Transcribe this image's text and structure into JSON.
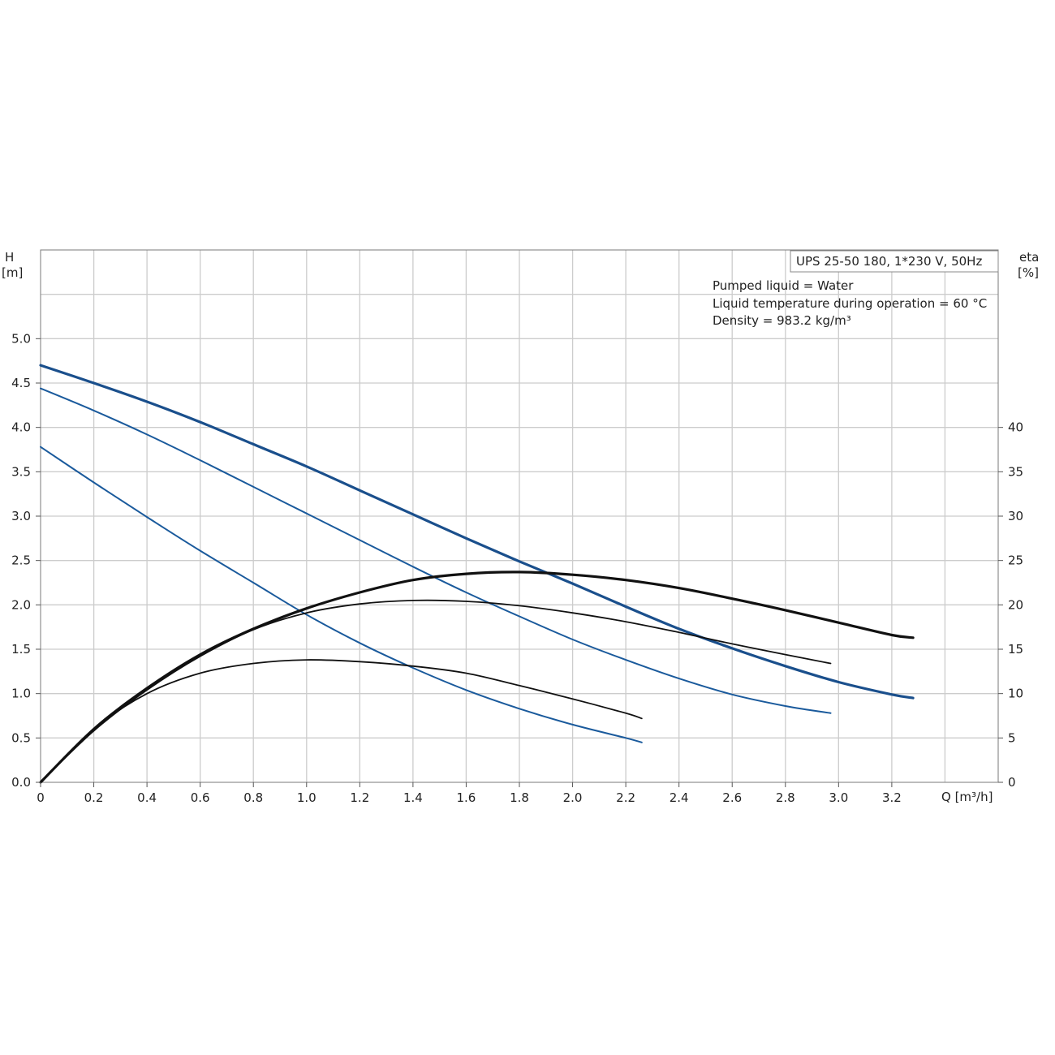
{
  "chart_data": {
    "type": "line",
    "title": "UPS 25-50 180, 1*230 V, 50Hz",
    "annotations": [
      "Pumped liquid = Water",
      "Liquid temperature during operation = 60 °C",
      "Density = 983.2 kg/m³"
    ],
    "x_axis": {
      "label": "Q [m³/h]",
      "range": [
        0,
        3.6
      ],
      "ticks": [
        0,
        0.2,
        0.4,
        0.6,
        0.8,
        1.0,
        1.2,
        1.4,
        1.6,
        1.8,
        2.0,
        2.2,
        2.4,
        2.6,
        2.8,
        3.0,
        3.2
      ],
      "tick_labels": [
        "0",
        "0.2",
        "0.4",
        "0.6",
        "0.8",
        "1.0",
        "1.2",
        "1.4",
        "1.6",
        "1.8",
        "2.0",
        "2.2",
        "2.4",
        "2.6",
        "2.8",
        "3.0",
        "3.2"
      ]
    },
    "y_left": {
      "label_line1": "H",
      "label_line2": "[m]",
      "range": [
        0,
        6.0
      ],
      "ticks": [
        0,
        0.5,
        1.0,
        1.5,
        2.0,
        2.5,
        3.0,
        3.5,
        4.0,
        4.5,
        5.0
      ],
      "tick_labels": [
        "0.0",
        "0.5",
        "1.0",
        "1.5",
        "2.0",
        "2.5",
        "3.0",
        "3.5",
        "4.0",
        "4.5",
        "5.0"
      ]
    },
    "y_right": {
      "label_line1": "eta",
      "label_line2": "[%]",
      "range": [
        0,
        60
      ],
      "ticks": [
        0,
        5,
        10,
        15,
        20,
        25,
        30,
        35,
        40
      ],
      "tick_labels": [
        "0",
        "5",
        "10",
        "15",
        "20",
        "25",
        "30",
        "35",
        "40"
      ]
    },
    "grid": true,
    "series": [
      {
        "kind": "head",
        "color": "#1a4f8c",
        "width": 3.2,
        "x": [
          0,
          0.2,
          0.4,
          0.6,
          0.8,
          1.0,
          1.2,
          1.4,
          1.6,
          1.8,
          2.0,
          2.2,
          2.4,
          2.6,
          2.8,
          3.0,
          3.2,
          3.28
        ],
        "y": [
          4.7,
          4.5,
          4.29,
          4.06,
          3.81,
          3.56,
          3.29,
          3.02,
          2.75,
          2.49,
          2.24,
          1.98,
          1.73,
          1.51,
          1.31,
          1.13,
          0.99,
          0.95
        ]
      },
      {
        "kind": "head",
        "color": "#1a5a9c",
        "width": 2.0,
        "x": [
          0,
          0.2,
          0.4,
          0.6,
          0.8,
          1.0,
          1.2,
          1.4,
          1.6,
          1.8,
          2.0,
          2.2,
          2.4,
          2.6,
          2.8,
          2.97
        ],
        "y": [
          4.44,
          4.19,
          3.92,
          3.63,
          3.33,
          3.03,
          2.73,
          2.43,
          2.14,
          1.87,
          1.61,
          1.38,
          1.17,
          0.99,
          0.86,
          0.78
        ]
      },
      {
        "kind": "head",
        "color": "#1a5a9c",
        "width": 2.0,
        "x": [
          0,
          0.2,
          0.4,
          0.6,
          0.8,
          1.0,
          1.2,
          1.4,
          1.6,
          1.8,
          2.0,
          2.2,
          2.26
        ],
        "y": [
          3.78,
          3.38,
          2.99,
          2.61,
          2.25,
          1.89,
          1.57,
          1.29,
          1.04,
          0.83,
          0.65,
          0.5,
          0.45
        ]
      },
      {
        "kind": "eta",
        "color": "#111111",
        "width": 3.2,
        "x": [
          0,
          0.2,
          0.4,
          0.6,
          0.8,
          1.0,
          1.2,
          1.4,
          1.6,
          1.8,
          2.0,
          2.2,
          2.4,
          2.6,
          2.8,
          3.0,
          3.2,
          3.28
        ],
        "y": [
          0,
          6.0,
          10.6,
          14.4,
          17.3,
          19.6,
          21.4,
          22.8,
          23.5,
          23.7,
          23.4,
          22.8,
          21.9,
          20.7,
          19.4,
          18.0,
          16.6,
          16.3
        ]
      },
      {
        "kind": "eta",
        "color": "#111111",
        "width": 1.8,
        "x": [
          0,
          0.2,
          0.4,
          0.6,
          0.8,
          1.0,
          1.2,
          1.4,
          1.6,
          1.8,
          2.0,
          2.2,
          2.4,
          2.6,
          2.8,
          2.97
        ],
        "y": [
          0,
          5.8,
          10.4,
          14.2,
          17.2,
          19.1,
          20.1,
          20.5,
          20.4,
          19.9,
          19.1,
          18.1,
          16.9,
          15.6,
          14.4,
          13.4
        ]
      },
      {
        "kind": "eta",
        "color": "#111111",
        "width": 1.8,
        "x": [
          0,
          0.2,
          0.4,
          0.6,
          0.8,
          1.0,
          1.2,
          1.4,
          1.6,
          1.8,
          2.0,
          2.2,
          2.26
        ],
        "y": [
          0,
          6.0,
          10.0,
          12.3,
          13.4,
          13.8,
          13.6,
          13.1,
          12.3,
          10.9,
          9.4,
          7.8,
          7.2
        ]
      }
    ]
  }
}
